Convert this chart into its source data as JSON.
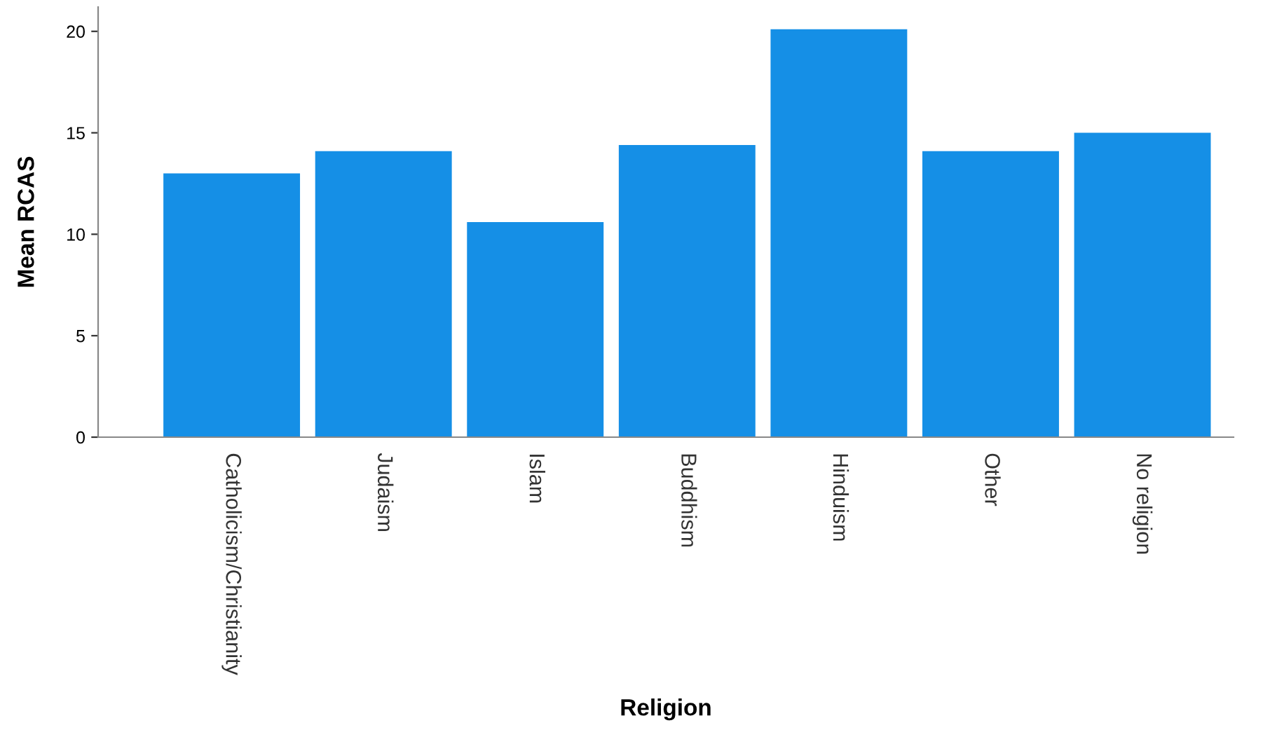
{
  "chart_data": {
    "type": "bar",
    "xlabel": "Religion",
    "ylabel": "Mean RCAS",
    "categories": [
      "Catholicism/Christianity",
      "Judaism",
      "Islam",
      "Buddhism",
      "Hinduism",
      "Other",
      "No religion"
    ],
    "values": [
      13.0,
      14.1,
      10.6,
      14.4,
      20.1,
      14.1,
      15.0
    ],
    "color": "#158fe6",
    "ylim": [
      0,
      21.2
    ],
    "yticks": [
      0,
      5,
      10,
      15,
      20
    ],
    "grid": false
  }
}
